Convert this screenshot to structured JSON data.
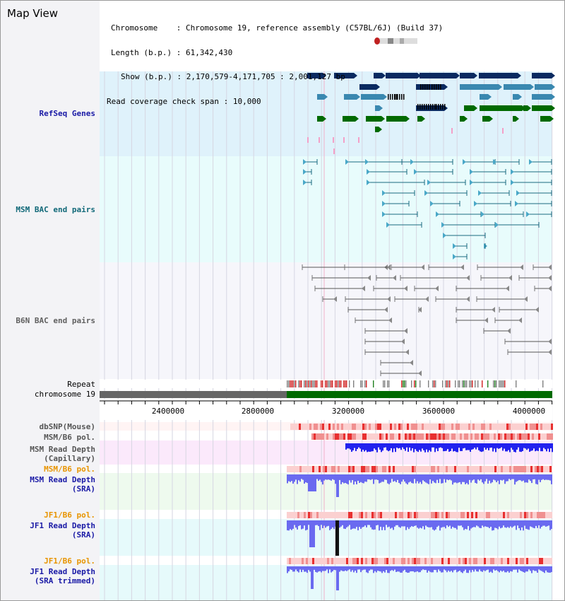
{
  "header": {
    "title": "Map View",
    "chromosome_label": "Chromosome",
    "chromosome_value": "Chromosome 19, reference assembly (C57BL/6J) (Build 37)",
    "length_label": "Length (b.p.)",
    "length_value": "61,342,430",
    "show_label": "Show (b.p.)",
    "show_value": "2,170,579-4,171,705 : 2,001,127 bp",
    "span_label": "Read coverage check span",
    "span_value": "10,000"
  },
  "tracks": {
    "refseq": "RefSeq Genes",
    "msm_bac": "MSM BAC end pairs",
    "b6n_bac": "B6N BAC end pairs",
    "repeat": "Repeat",
    "chromosome": "chromosome 19",
    "dbsnp": "dbSNP(Mouse)",
    "msm_b6_pol_1": "MSM/B6 pol.",
    "msm_depth_cap_1": "MSM Read Depth",
    "msm_depth_cap_2": "(Capillary)",
    "msm_b6_pol_2": "MSM/B6 pol.",
    "msm_depth_sra_1": "MSM Read Depth",
    "msm_depth_sra_2": "(SRA)",
    "jf1_b6_pol_1": "JF1/B6 pol.",
    "jf1_depth_sra_1": "JF1 Read Depth",
    "jf1_depth_sra_2": "(SRA)",
    "jf1_b6_pol_2": "JF1/B6 pol.",
    "jf1_depth_trim_1": "JF1 Read Depth",
    "jf1_depth_trim_2": "(SRA trimmed)"
  },
  "axis": {
    "ticks": [
      "2400000",
      "2800000",
      "3200000",
      "3600000",
      "4000000"
    ]
  },
  "colors": {
    "refseq_label": "#1a1aa6",
    "msm_label": "#106878",
    "b6n_label": "#606060",
    "orange_label": "#e89400",
    "blue_label": "#1a1aa6",
    "gene_dark": "#0a2a60",
    "gene_mid": "#3a88b0",
    "gene_green": "#006a00",
    "bac_line": "#1a6a80",
    "b6n_line": "#555555",
    "chrom_gray": "#666666",
    "chrom_green": "#006a00",
    "depth_blue": "#2222ee",
    "depth_light": "#6a6af0"
  }
}
